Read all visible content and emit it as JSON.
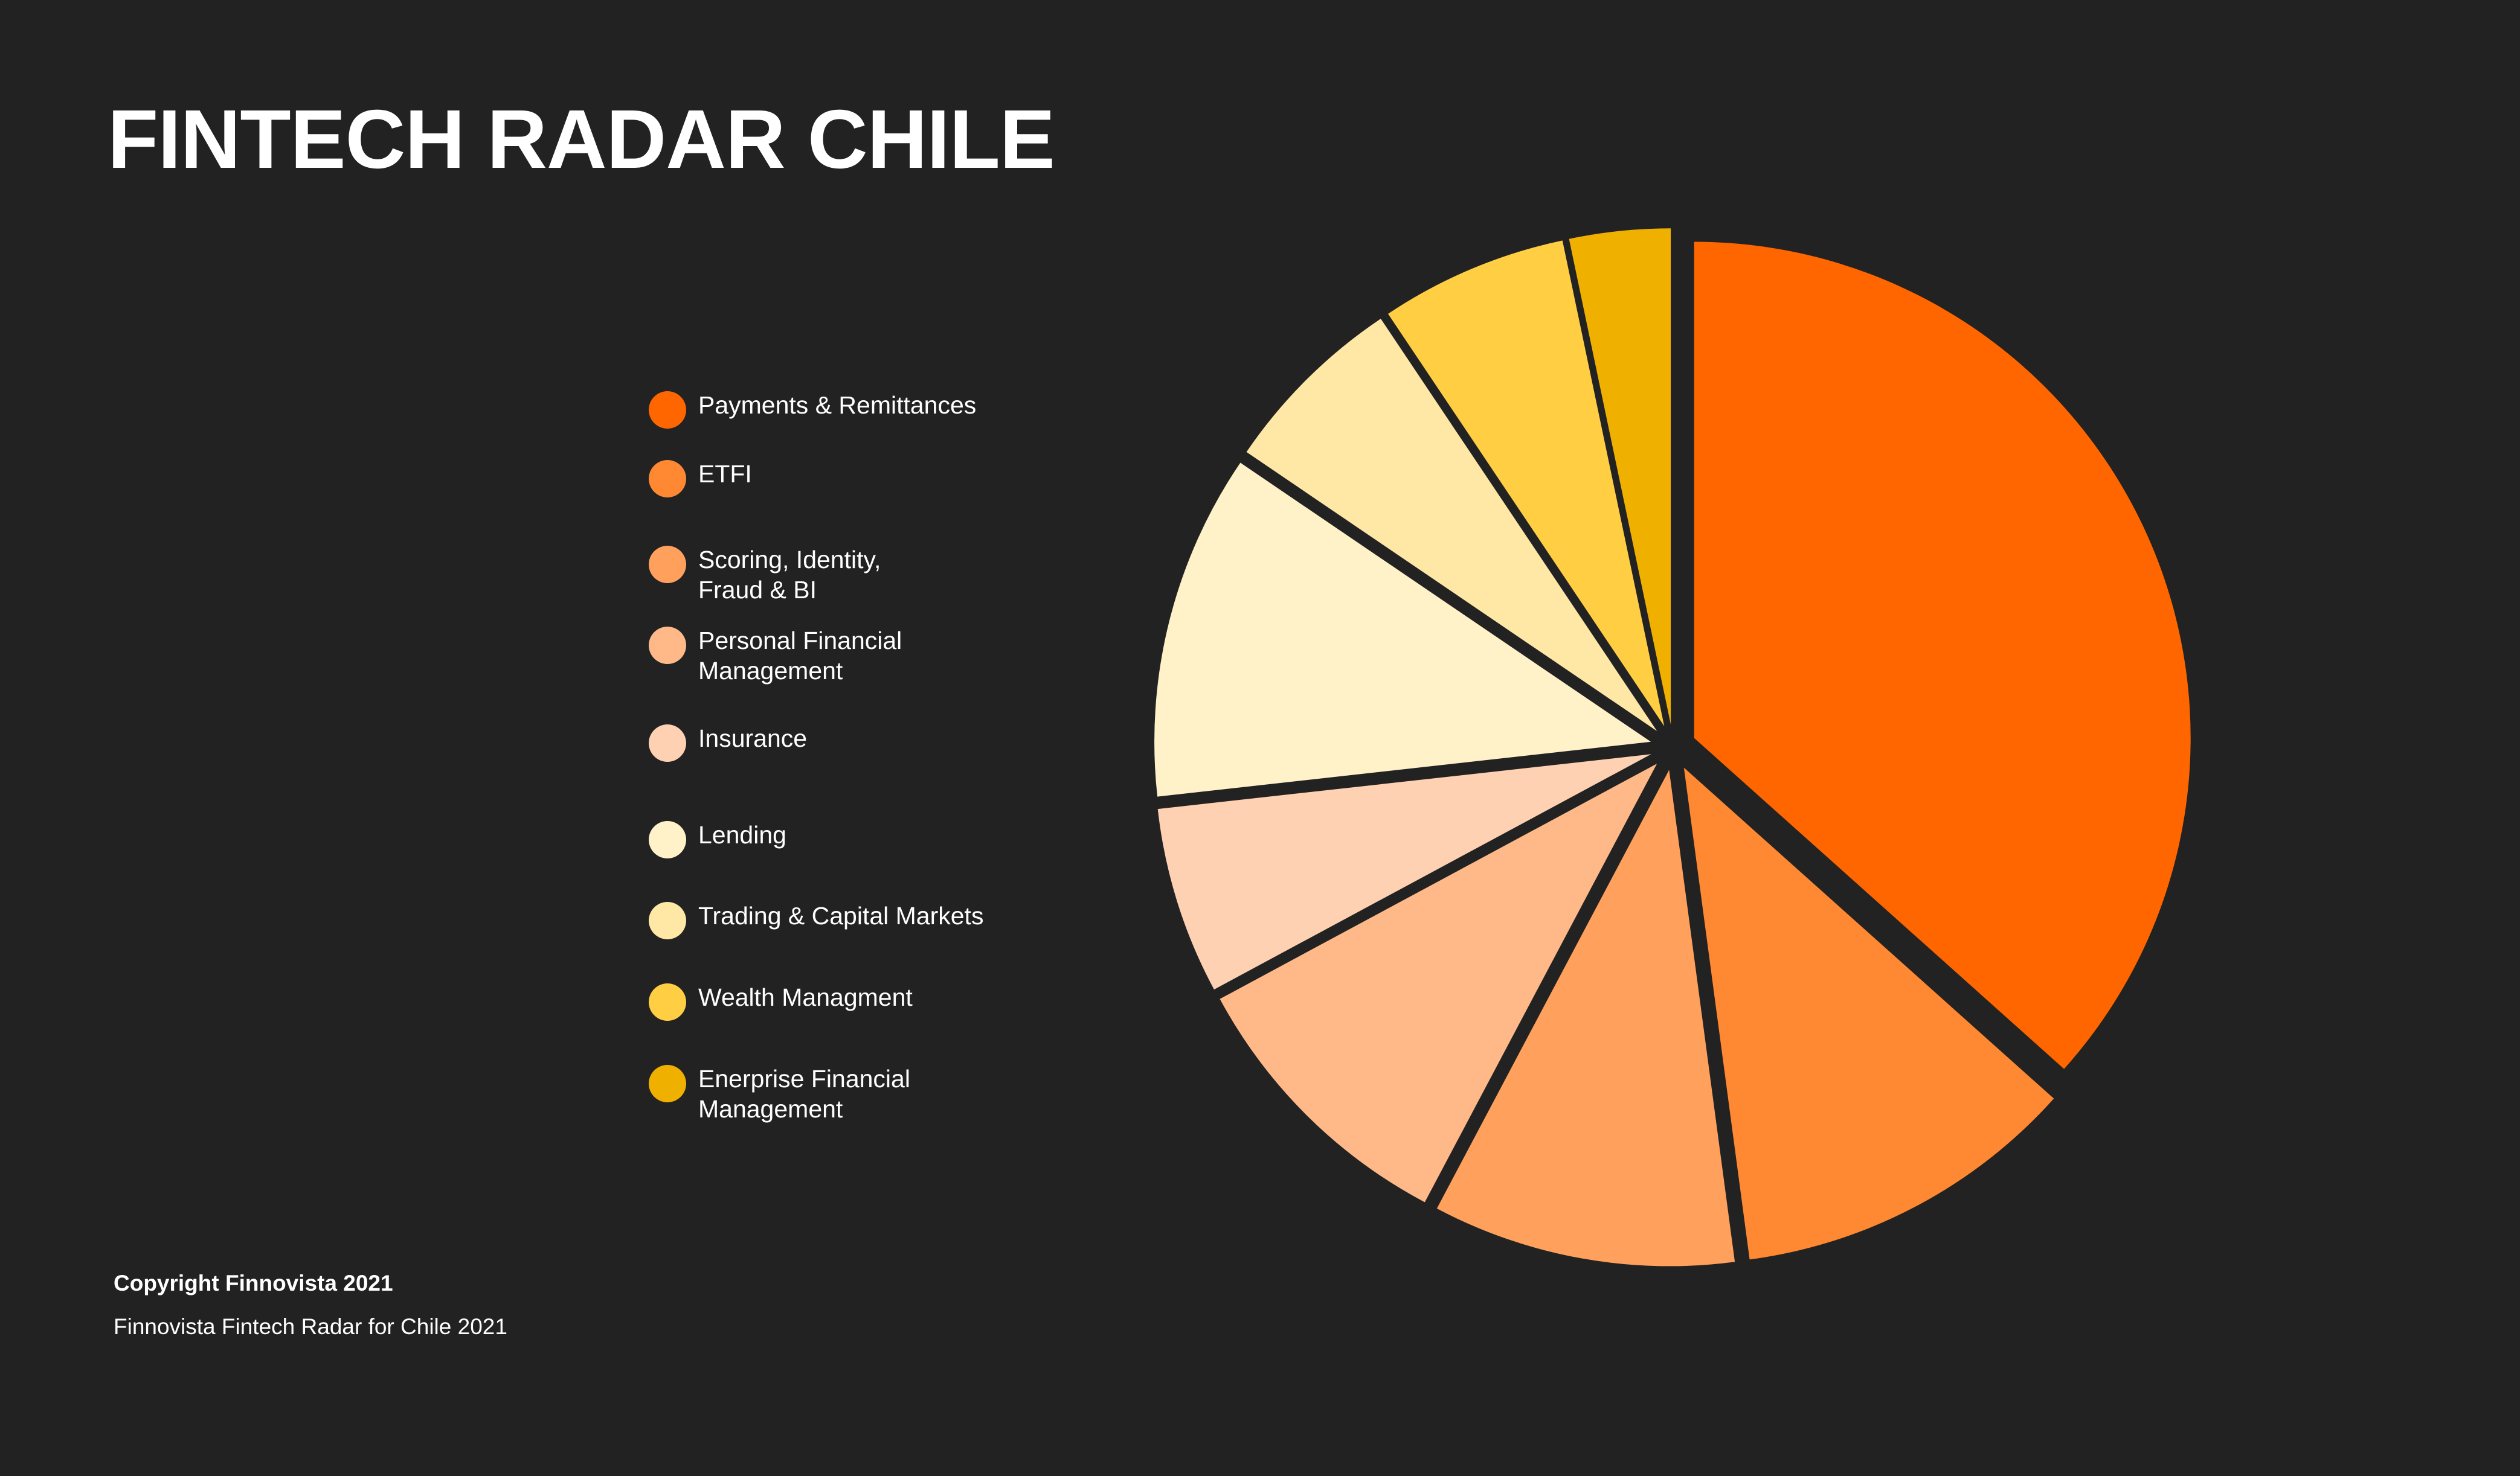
{
  "title": "FINTECH RADAR CHILE",
  "footer": {
    "copyright": "Copyright Finnovista 2021",
    "source": "Finnovista Fintech Radar for Chile 2021"
  },
  "chart_data": {
    "type": "pie",
    "title": "",
    "legend_position": "left",
    "slices": [
      {
        "label": "Payments & Remittances",
        "value": 39.0,
        "color": "#FF6600"
      },
      {
        "label": "ETFI",
        "value": 12.0,
        "color": "#FF8833"
      },
      {
        "label": "Scoring, Identity,\nFraud & BI",
        "value": 10.5,
        "color": "#FFA05C"
      },
      {
        "label": "Personal Financial\nManagement",
        "value": 10.0,
        "color": "#FFB888"
      },
      {
        "label": "Insurance",
        "value": 6.5,
        "color": "#FFD1B3"
      },
      {
        "label": "Lending",
        "value": 12.0,
        "color": "#FFF2C9"
      },
      {
        "label": "Trading & Capital Markets",
        "value": 6.5,
        "color": "#FFE8A6"
      },
      {
        "label": "Wealth Managment",
        "value": 6.5,
        "color": "#FFCE42"
      },
      {
        "label": "Enerprise Financial\nManagement",
        "value": 3.5,
        "color": "#F0B000"
      }
    ]
  }
}
